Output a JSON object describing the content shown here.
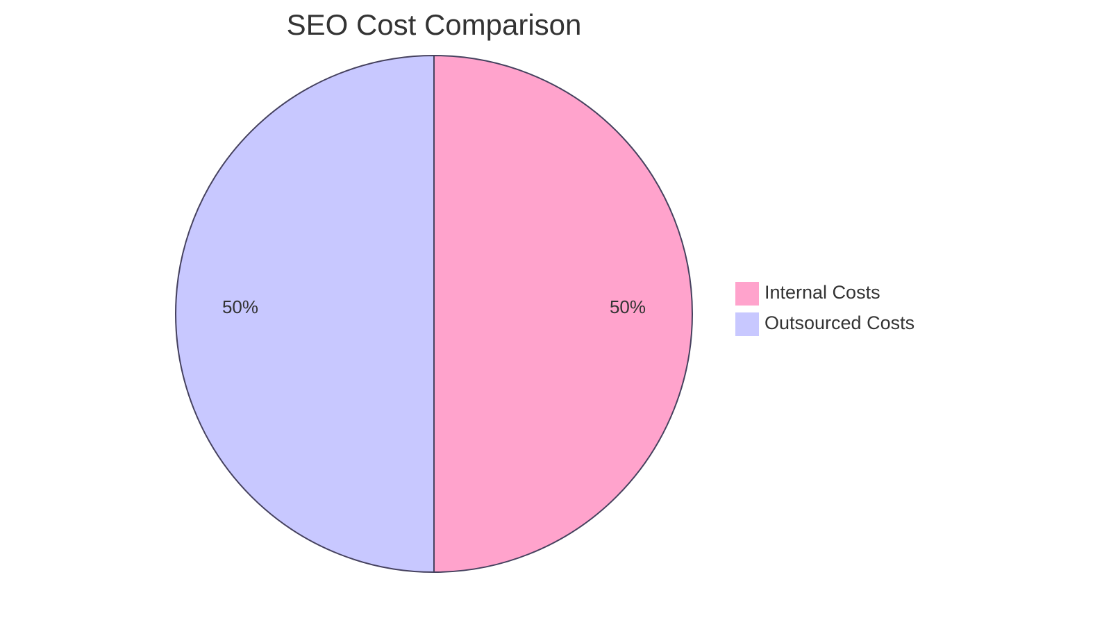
{
  "chart_data": {
    "type": "pie",
    "title": "SEO Cost Comparison",
    "slices": [
      {
        "label": "Internal Costs",
        "value": 50,
        "display": "50%",
        "color": "#FFA3CC"
      },
      {
        "label": "Outsourced Costs",
        "value": 50,
        "display": "50%",
        "color": "#C8C8FF"
      }
    ],
    "stroke_color": "#45415E",
    "legend_position": "right"
  }
}
